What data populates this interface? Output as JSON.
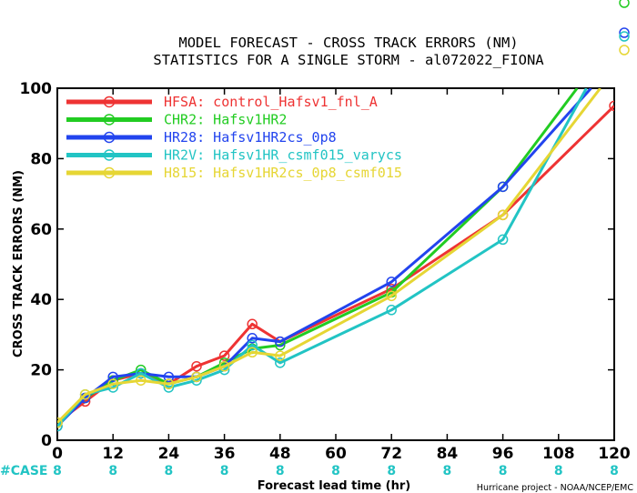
{
  "chart_data": {
    "type": "line",
    "title": "MODEL FORECAST - CROSS TRACK ERRORS (NM)",
    "subtitle": "STATISTICS FOR A SINGLE STORM - al072022_FIONA",
    "xlabel": "Forecast lead time (hr)",
    "ylabel": "CROSS TRACK ERRORS (NM)",
    "xlim": [
      0,
      120
    ],
    "ylim": [
      0,
      100
    ],
    "xticks": [
      "0",
      "12",
      "24",
      "36",
      "48",
      "60",
      "72",
      "84",
      "96",
      "108",
      "120"
    ],
    "yticks": [
      "0",
      "20",
      "40",
      "60",
      "80",
      "100"
    ],
    "legend_position": "top-left",
    "series": [
      {
        "name": "HFSA",
        "label": "control_Hafsv1_fnl_A",
        "color": "#ee3333",
        "x": [
          0,
          6,
          12,
          18,
          24,
          30,
          36,
          42,
          48,
          72,
          96,
          120
        ],
        "y": [
          5,
          11,
          17,
          19,
          16,
          21,
          24,
          33,
          28,
          43,
          64,
          95
        ],
        "marker_x": [
          0,
          6,
          12,
          18,
          24,
          30,
          36,
          42,
          48,
          72,
          96,
          120
        ]
      },
      {
        "name": "CHR2",
        "label": "Hafsv1HR2",
        "color": "#22cc22",
        "x": [
          0,
          6,
          12,
          18,
          24,
          30,
          36,
          42,
          48,
          72,
          96,
          112
        ],
        "y": [
          5,
          12,
          17,
          20,
          16,
          18,
          22,
          26,
          27,
          42,
          72,
          100
        ],
        "marker_x": [
          0,
          6,
          12,
          18,
          24,
          30,
          36,
          42,
          48,
          72,
          96
        ]
      },
      {
        "name": "HR28",
        "label": "Hafsv1HR2cs_0p8",
        "color": "#2244ee",
        "x": [
          0,
          6,
          12,
          18,
          24,
          30,
          36,
          42,
          48,
          72,
          96,
          115
        ],
        "y": [
          4,
          12,
          18,
          19,
          18,
          18,
          21,
          29,
          28,
          45,
          72,
          100
        ],
        "marker_x": [
          0,
          6,
          12,
          18,
          24,
          30,
          36,
          42,
          48,
          72,
          96
        ]
      },
      {
        "name": "HR2V",
        "label": "Hafsv1HR_csmf015_varycs",
        "color": "#22c4c4",
        "x": [
          0,
          6,
          12,
          18,
          24,
          30,
          36,
          42,
          48,
          72,
          96,
          114
        ],
        "y": [
          4,
          13,
          15,
          19,
          15,
          17,
          20,
          27,
          22,
          37,
          57,
          100
        ],
        "marker_x": [
          0,
          6,
          12,
          18,
          24,
          30,
          36,
          42,
          48,
          72,
          96
        ]
      },
      {
        "name": "H815",
        "label": "Hafsv1HR2cs_0p8_csmf015",
        "color": "#e6d634",
        "x": [
          0,
          6,
          12,
          18,
          24,
          30,
          36,
          42,
          48,
          72,
          96,
          117
        ],
        "y": [
          5,
          13,
          16,
          17,
          16,
          18,
          21,
          25,
          24,
          41,
          64,
          100
        ],
        "marker_x": [
          0,
          6,
          12,
          18,
          24,
          30,
          36,
          42,
          48,
          72,
          96
        ]
      }
    ],
    "case_label": "#CASE",
    "case_counts": {
      "x": [
        0,
        12,
        24,
        36,
        48,
        60,
        72,
        84,
        96,
        108,
        120
      ],
      "values": [
        "8",
        "8",
        "8",
        "8",
        "8",
        "8",
        "8",
        "8",
        "8",
        "8",
        "8"
      ]
    },
    "edge_circles": [
      "#22cc22",
      "#2244ee",
      "#e6d634"
    ],
    "credit": "Hurricane project - NOAA/NCEP/EMC"
  }
}
